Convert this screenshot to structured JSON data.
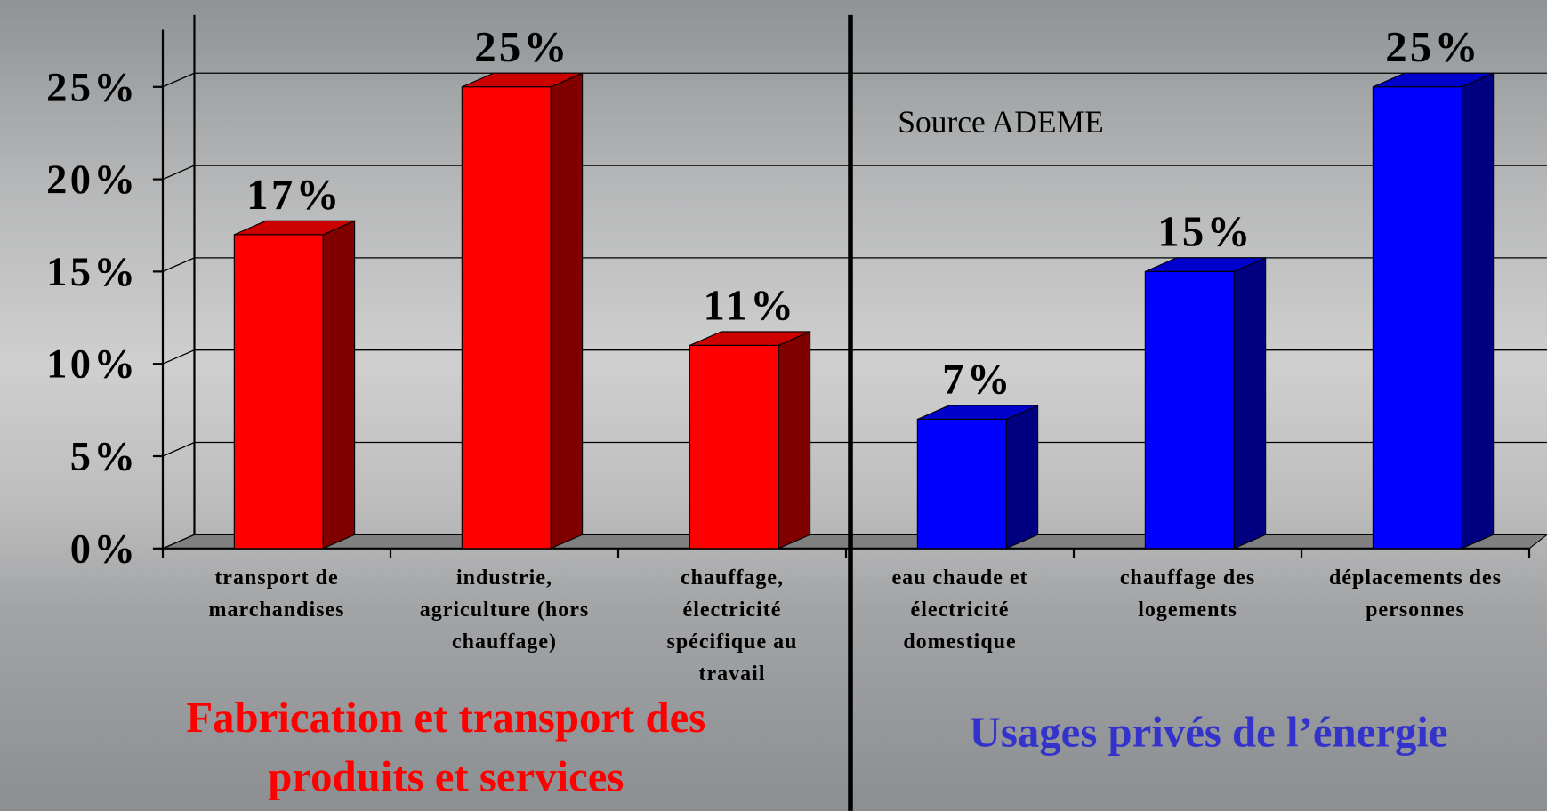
{
  "chart_data": {
    "type": "bar3d",
    "categories": [
      "transport de marchandises",
      "industrie, agriculture (hors chauffage)",
      "chauffage, électricité spécifique au travail",
      "eau chaude et électricité domestique",
      "chauffage des logements",
      "déplacements des personnes"
    ],
    "values": [
      17,
      25,
      11,
      7,
      15,
      25
    ],
    "value_labels": [
      "17%",
      "25%",
      "11%",
      "7%",
      "15%",
      "25%"
    ],
    "colors": [
      "#ff0000",
      "#ff0000",
      "#ff0000",
      "#0000ff",
      "#0000ff",
      "#0000ff"
    ],
    "ylim": [
      0,
      25
    ],
    "yticks": [
      {
        "value": 0,
        "label": "0%"
      },
      {
        "value": 5,
        "label": "5%"
      },
      {
        "value": 10,
        "label": "10%"
      },
      {
        "value": 15,
        "label": "15%"
      },
      {
        "value": 20,
        "label": "20%"
      },
      {
        "value": 25,
        "label": "25%"
      }
    ],
    "grid": true,
    "annotations": [
      "Source ADEME"
    ],
    "groups": [
      {
        "label": "Fabrication et transport des produits et services",
        "color": "#ff0000"
      },
      {
        "label": "Usages privés de l’énergie",
        "color": "#3333cc"
      }
    ]
  }
}
